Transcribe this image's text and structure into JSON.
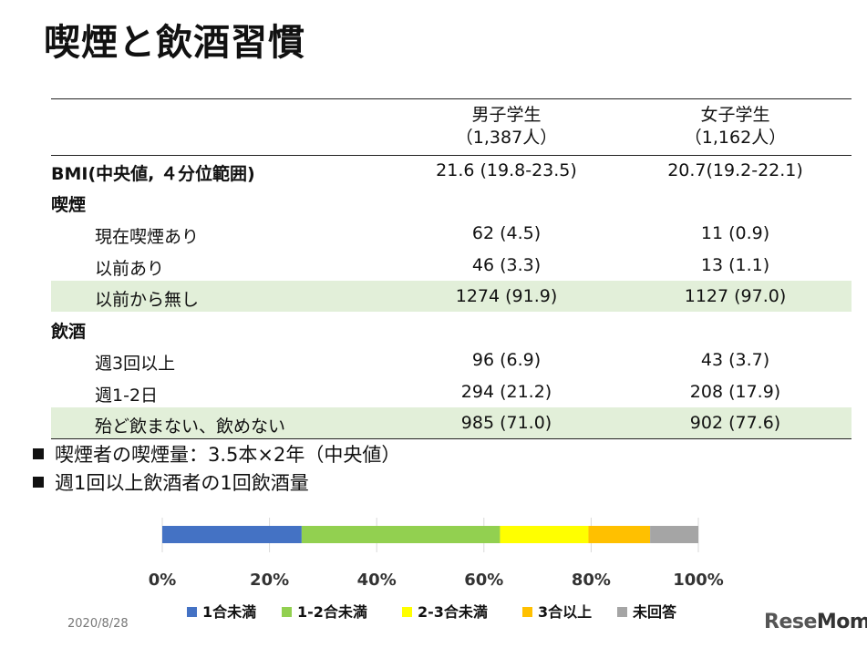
{
  "title": "喫煙と飲酒習慣",
  "table": {
    "col1": {
      "name": "男子学生",
      "n": "（1,387人）"
    },
    "col2": {
      "name": "女子学生",
      "n": "（1,162人）"
    },
    "rows": [
      {
        "label": "BMI(中央値, ４分位範囲)",
        "v1": "21.6 (19.8-23.5)",
        "v2": "20.7(19.2-22.1)"
      },
      {
        "label": "喫煙"
      },
      {
        "label": "現在喫煙あり",
        "v1": "62 (4.5)",
        "v2": "11 (0.9)"
      },
      {
        "label": "以前あり",
        "v1": "46 (3.3)",
        "v2": "13 (1.1)"
      },
      {
        "label": "以前から無し",
        "v1": "1274 (91.9)",
        "v2": "1127 (97.0)"
      },
      {
        "label": "飲酒"
      },
      {
        "label": "週3回以上",
        "v1": "96 (6.9)",
        "v2": "43 (3.7)"
      },
      {
        "label": "週1-2日",
        "v1": "294 (21.2)",
        "v2": "208 (17.9)"
      },
      {
        "label": "殆ど飲まない、飲めない",
        "v1": "985 (71.0)",
        "v2": "902 (77.6)"
      }
    ]
  },
  "notes": [
    "喫煙者の喫煙量：3.5本×2年（中央値）",
    "週1回以上飲酒者の1回飲酒量"
  ],
  "chart_data": {
    "type": "bar",
    "orientation": "horizontal-stacked",
    "xlim": [
      0,
      100
    ],
    "ticks": [
      "0%",
      "20%",
      "40%",
      "60%",
      "80%",
      "100%"
    ],
    "legend_position": "bottom",
    "series": [
      {
        "name": "1合未満",
        "value": 26,
        "color": "#4472c4"
      },
      {
        "name": "1-2合未満",
        "value": 37,
        "color": "#92d050"
      },
      {
        "name": "2-3合未満",
        "value": 16.5,
        "color": "#ffff00"
      },
      {
        "name": "3合以上",
        "value": 11.5,
        "color": "#ffc000"
      },
      {
        "name": "未回答",
        "value": 9,
        "color": "#a5a5a5"
      }
    ]
  },
  "footer": {
    "date": "2020/8/28",
    "logo_a": "Rese",
    "logo_b": "Mom"
  }
}
